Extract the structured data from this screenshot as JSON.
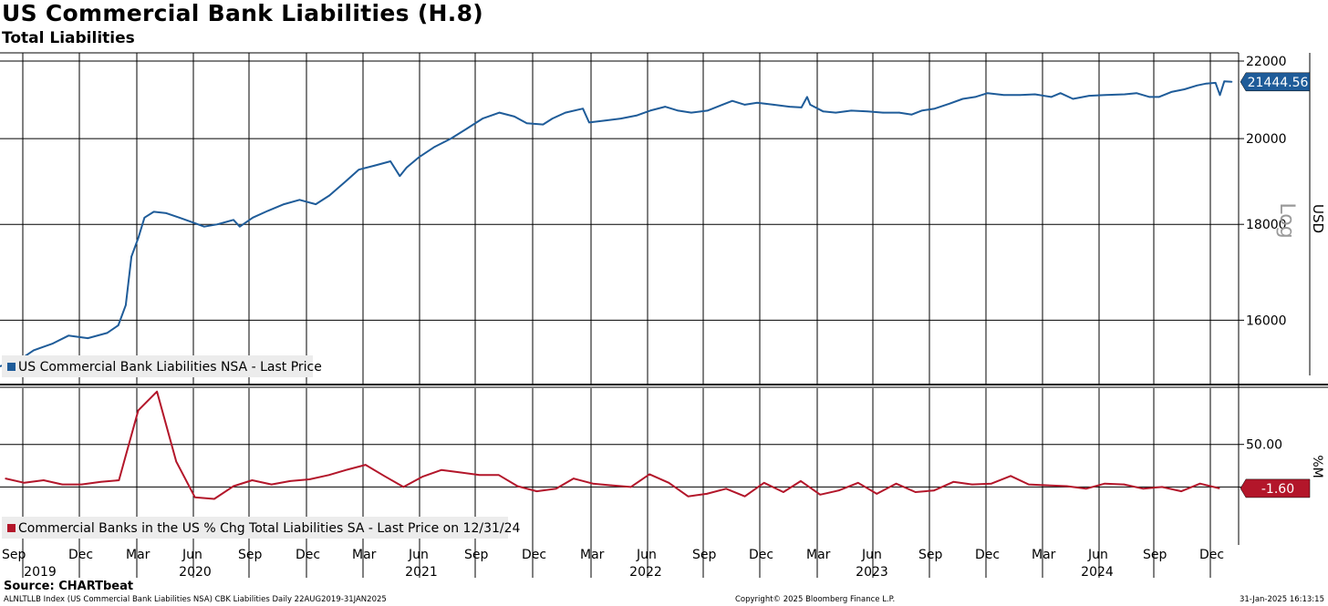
{
  "header": {
    "title": "US Commercial Bank Liabilities (H.8)",
    "subtitle": "Total Liabilities"
  },
  "footer": {
    "source": "Source: CHARTbeat",
    "info": "ALNLTLLB Index (US Commercial Bank Liabilities NSA) CBK Liabilities  Daily 22AUG2019-31JAN2025",
    "copyright": "Copyright© 2025 Bloomberg Finance L.P.",
    "timestamp": "31-Jan-2025  16:13:15"
  },
  "chart_data": [
    {
      "type": "line",
      "panel": "top",
      "axis_label": "USD",
      "scale_label": "Log",
      "ylim": [
        14800,
        22000
      ],
      "yticks": [
        16000,
        18000,
        20000,
        22000
      ],
      "ytick_labels": [
        "16000",
        "18000",
        "20000",
        "22000"
      ],
      "grid": true,
      "legend_position": "bottom-left",
      "last_value_label": "21444.56",
      "series": [
        {
          "name": "US Commercial Bank Liabilities NSA - Last Price",
          "color": "#1f5c99",
          "x": [
            "2019-08-22",
            "2019-09-20",
            "2019-10-15",
            "2019-11-15",
            "2019-12-10",
            "2020-01-10",
            "2020-02-10",
            "2020-02-28",
            "2020-03-11",
            "2020-03-20",
            "2020-03-31",
            "2020-04-10",
            "2020-04-25",
            "2020-05-15",
            "2020-06-05",
            "2020-06-25",
            "2020-07-15",
            "2020-08-05",
            "2020-08-31",
            "2020-09-10",
            "2020-10-01",
            "2020-10-25",
            "2020-11-20",
            "2020-12-15",
            "2021-01-10",
            "2021-02-01",
            "2021-02-25",
            "2021-03-20",
            "2021-04-15",
            "2021-05-10",
            "2021-05-25",
            "2021-06-05",
            "2021-06-25",
            "2021-07-20",
            "2021-08-15",
            "2021-09-10",
            "2021-10-05",
            "2021-11-01",
            "2021-11-25",
            "2021-12-15",
            "2022-01-10",
            "2022-01-25",
            "2022-02-15",
            "2022-03-15",
            "2022-03-25",
            "2022-04-20",
            "2022-05-15",
            "2022-06-10",
            "2022-07-01",
            "2022-07-25",
            "2022-08-15",
            "2022-09-05",
            "2022-10-01",
            "2022-10-25",
            "2022-11-10",
            "2022-11-30",
            "2022-12-20",
            "2023-01-15",
            "2023-02-10",
            "2023-03-01",
            "2023-03-10",
            "2023-03-15",
            "2023-04-05",
            "2023-04-25",
            "2023-05-20",
            "2023-06-15",
            "2023-07-10",
            "2023-08-05",
            "2023-08-25",
            "2023-09-10",
            "2023-10-01",
            "2023-10-25",
            "2023-11-15",
            "2023-12-05",
            "2023-12-25",
            "2024-01-20",
            "2024-02-15",
            "2024-03-10",
            "2024-04-05",
            "2024-04-20",
            "2024-05-10",
            "2024-06-05",
            "2024-07-01",
            "2024-08-01",
            "2024-08-20",
            "2024-09-10",
            "2024-09-25",
            "2024-10-15",
            "2024-11-05",
            "2024-11-25",
            "2024-12-10",
            "2024-12-25",
            "2025-01-01",
            "2025-01-08",
            "2025-01-20"
          ],
          "values": [
            15120,
            15220,
            15420,
            15550,
            15700,
            15650,
            15750,
            15900,
            16300,
            17300,
            17700,
            18150,
            18280,
            18250,
            18150,
            18050,
            17950,
            18000,
            18100,
            17950,
            18150,
            18300,
            18450,
            18550,
            18450,
            18650,
            18950,
            19250,
            19350,
            19450,
            19100,
            19300,
            19550,
            19800,
            20000,
            20250,
            20500,
            20650,
            20550,
            20380,
            20350,
            20500,
            20650,
            20750,
            20400,
            20450,
            20500,
            20580,
            20700,
            20800,
            20700,
            20650,
            20700,
            20850,
            20950,
            20850,
            20900,
            20850,
            20800,
            20780,
            21050,
            20850,
            20680,
            20650,
            20700,
            20680,
            20650,
            20650,
            20600,
            20700,
            20750,
            20880,
            21000,
            21050,
            21150,
            21100,
            21100,
            21120,
            21050,
            21150,
            21000,
            21080,
            21100,
            21120,
            21150,
            21050,
            21050,
            21180,
            21250,
            21350,
            21400,
            21420,
            21100,
            21460,
            21444.56
          ]
        }
      ]
    },
    {
      "type": "line",
      "panel": "bottom",
      "axis_label": "%M",
      "ylim": [
        -68,
        116
      ],
      "yticks": [
        0,
        50
      ],
      "ytick_labels": [
        "",
        "50.00"
      ],
      "grid": true,
      "legend_position": "bottom-left",
      "last_value_label": "-1.60",
      "xtick_labels": [
        "Sep",
        "Dec",
        "Mar",
        "Jun",
        "Sep",
        "Dec",
        "Mar",
        "Jun",
        "Sep",
        "Dec",
        "Mar",
        "Jun",
        "Sep",
        "Dec",
        "Mar",
        "Jun",
        "Sep",
        "Dec",
        "Mar",
        "Jun",
        "Sep",
        "Dec"
      ],
      "year_labels": [
        "2019",
        "2020",
        "2021",
        "2022",
        "2023",
        "2024"
      ],
      "series": [
        {
          "name": "Commercial Banks in the US % Chg Total Liabilities SA - Last Price on 12/31/24",
          "color": "#b3162a",
          "x": [
            "2019-08-31",
            "2019-09-30",
            "2019-10-31",
            "2019-11-30",
            "2019-12-31",
            "2020-01-31",
            "2020-02-29",
            "2020-03-31",
            "2020-04-30",
            "2020-05-31",
            "2020-06-30",
            "2020-07-31",
            "2020-08-31",
            "2020-09-30",
            "2020-10-31",
            "2020-11-30",
            "2020-12-31",
            "2021-01-31",
            "2021-02-28",
            "2021-03-31",
            "2021-04-30",
            "2021-05-31",
            "2021-06-30",
            "2021-07-31",
            "2021-08-31",
            "2021-09-30",
            "2021-10-31",
            "2021-11-30",
            "2021-12-31",
            "2022-01-31",
            "2022-02-28",
            "2022-03-31",
            "2022-04-30",
            "2022-05-31",
            "2022-06-30",
            "2022-07-31",
            "2022-08-31",
            "2022-09-30",
            "2022-10-31",
            "2022-11-30",
            "2022-12-31",
            "2023-01-31",
            "2023-02-28",
            "2023-03-31",
            "2023-04-30",
            "2023-05-31",
            "2023-06-30",
            "2023-07-31",
            "2023-08-31",
            "2023-09-30",
            "2023-10-31",
            "2023-11-30",
            "2023-12-31",
            "2024-01-31",
            "2024-02-29",
            "2024-03-31",
            "2024-04-30",
            "2024-05-31",
            "2024-06-30",
            "2024-07-31",
            "2024-08-31",
            "2024-09-30",
            "2024-10-31",
            "2024-11-30",
            "2024-12-31"
          ],
          "values": [
            10,
            5,
            8,
            3,
            3,
            6,
            8,
            90,
            112,
            30,
            -12,
            -14,
            1,
            8,
            3,
            7,
            9,
            14,
            20,
            26,
            13,
            0,
            12,
            20,
            17,
            14,
            14,
            1,
            -5,
            -2,
            10,
            4,
            2,
            0,
            15,
            5,
            -11,
            -8,
            -2,
            -11,
            5,
            -6,
            7,
            -9,
            -4,
            5,
            -8,
            4,
            -6,
            -4,
            6,
            3,
            4,
            13,
            3,
            2,
            1,
            -2,
            4,
            3,
            -2,
            0,
            -5,
            4,
            -1.6
          ]
        }
      ]
    }
  ]
}
